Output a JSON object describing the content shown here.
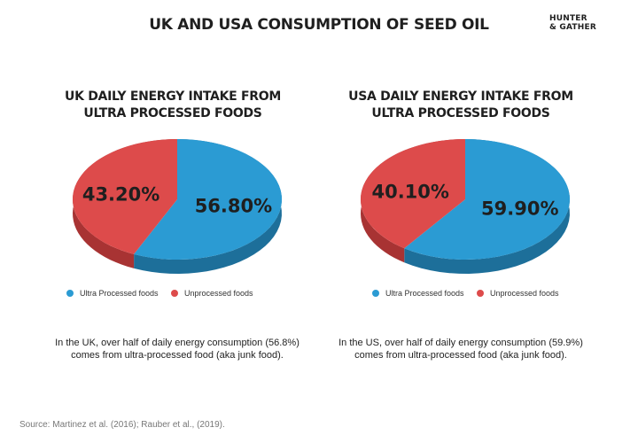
{
  "header": {
    "title": "UK AND USA CONSUMPTION OF SEED OIL",
    "logo_line1": "HUNTER",
    "logo_line2": "& GATHER"
  },
  "colors": {
    "ultra_processed": "#2b9bd3",
    "ultra_processed_dark": "#1d6f9a",
    "unprocessed": "#dd4b4b",
    "unprocessed_dark": "#a83333",
    "label_text": "#1f1f1f"
  },
  "chart_data": [
    {
      "type": "pie",
      "title_line1": "UK DAILY ENERGY INTAKE FROM",
      "title_line2": "ULTRA PROCESSED FOODS",
      "categories": [
        "Ultra Processed foods",
        "Unprocessed foods"
      ],
      "values": [
        56.8,
        43.2
      ],
      "labels": [
        "56.80%",
        "43.20%"
      ],
      "legend_placement": "bottom"
    },
    {
      "type": "pie",
      "title_line1": "USA DAILY ENERGY INTAKE FROM",
      "title_line2": "ULTRA PROCESSED FOODS",
      "categories": [
        "Ultra Processed foods",
        "Unprocessed foods"
      ],
      "values": [
        59.9,
        40.1
      ],
      "labels": [
        "59.90%",
        "40.10%"
      ],
      "legend_placement": "bottom"
    }
  ],
  "captions": {
    "uk_line1": "In the UK, over half of daily energy consumption (56.8%)",
    "uk_line2": "comes from ultra-processed food (aka junk food).",
    "us_line1": "In the US, over half of daily energy consumption (59.9%)",
    "us_line2": "comes from ultra-processed food (aka junk food)."
  },
  "source": "Source: Martinez et al. (2016); Rauber et al., (2019)."
}
